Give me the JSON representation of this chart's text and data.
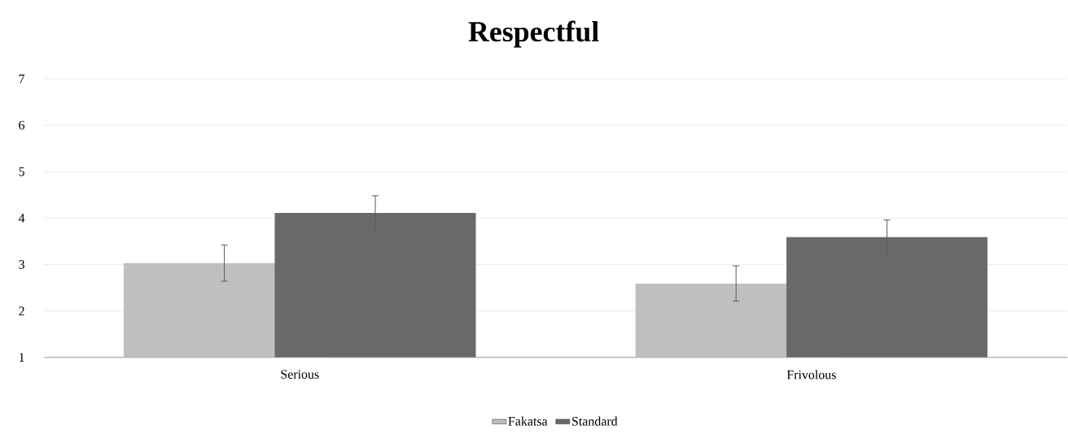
{
  "chart_data": {
    "type": "bar",
    "title": "Respectful",
    "categories": [
      "Serious",
      "Frivolous"
    ],
    "series": [
      {
        "name": "Fakatsa",
        "color": "#bfbfbf",
        "values": [
          3.03,
          2.59
        ],
        "errors": [
          0.39,
          0.38
        ]
      },
      {
        "name": "Standard",
        "color": "#696969",
        "values": [
          4.11,
          3.59
        ],
        "errors": [
          0.37,
          0.37
        ]
      }
    ],
    "ylim": [
      1,
      7
    ],
    "yticks": [
      1,
      2,
      3,
      4,
      5,
      6,
      7
    ],
    "grid": "y",
    "legend": "bottom"
  }
}
